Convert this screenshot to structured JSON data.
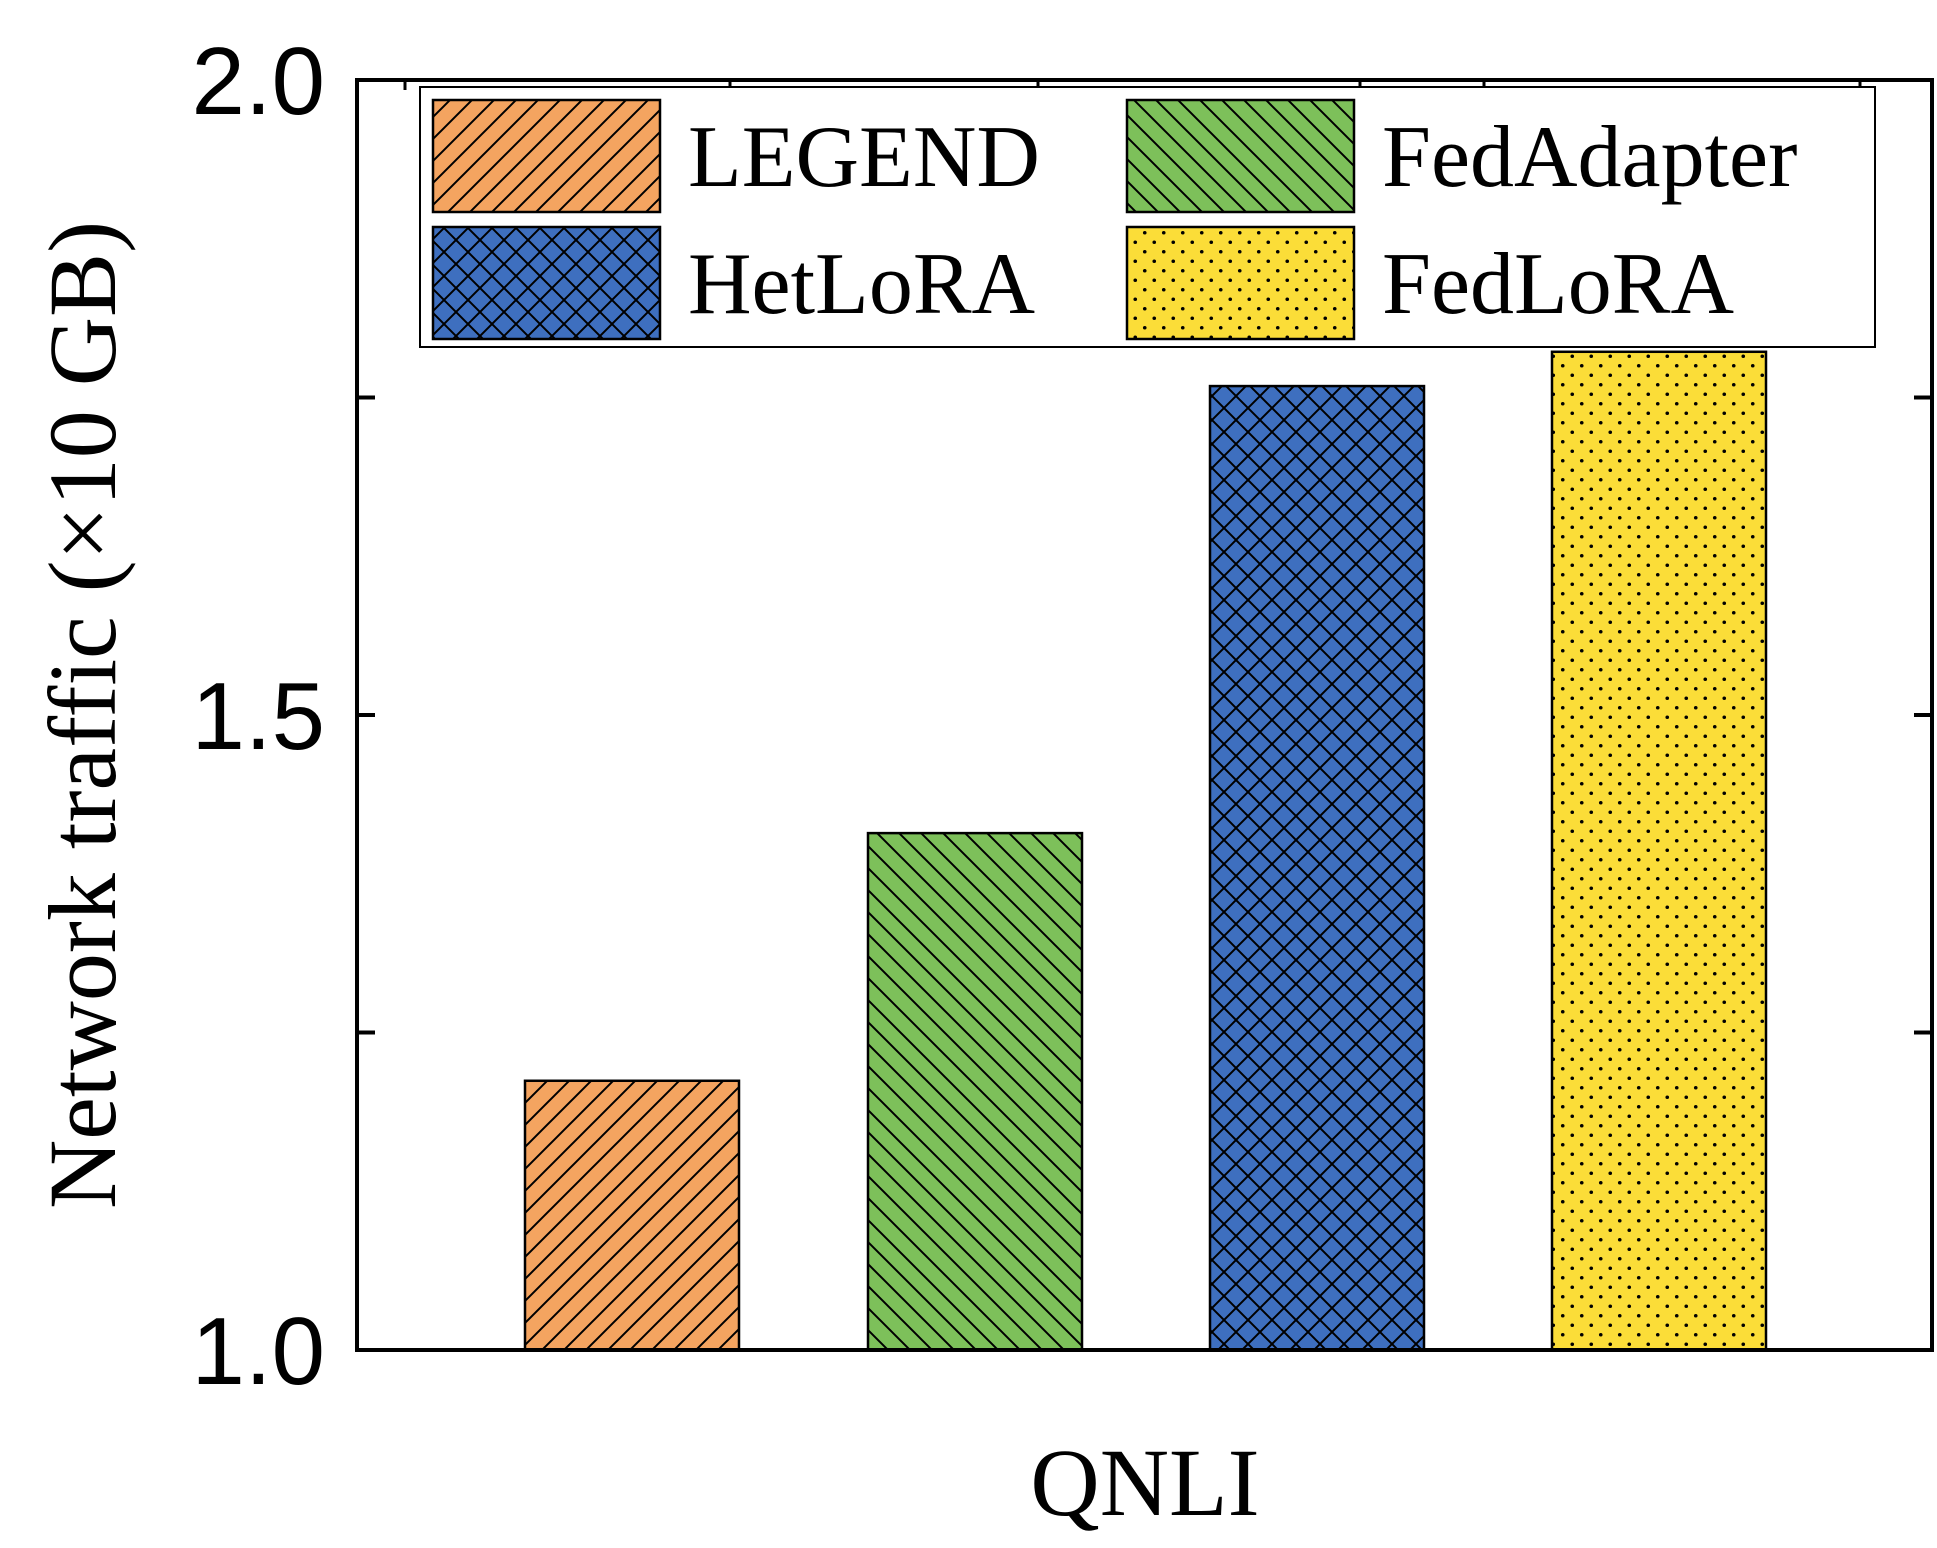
{
  "chart_data": {
    "type": "bar",
    "title": "",
    "xlabel": "QNLI",
    "ylabel": "Network traffic (×10 GB)",
    "ylim": [
      1.0,
      2.0
    ],
    "yticks": [
      {
        "value": 1.0,
        "label": "1.0"
      },
      {
        "value": 1.25,
        "label": ""
      },
      {
        "value": 1.5,
        "label": "1.5"
      },
      {
        "value": 1.75,
        "label": ""
      },
      {
        "value": 2.0,
        "label": "2.0"
      }
    ],
    "categories": [
      "QNLI"
    ],
    "series": [
      {
        "name": "LEGEND",
        "values": [
          1.212
        ],
        "color": "#F4A460",
        "pattern": "diagonal-forward"
      },
      {
        "name": "FedAdapter",
        "values": [
          1.407
        ],
        "color": "#7DC05A",
        "pattern": "diagonal-backward"
      },
      {
        "name": "HetLoRA",
        "values": [
          1.759
        ],
        "color": "#3E6FBF",
        "pattern": "crosshatch"
      },
      {
        "name": "FedLoRA",
        "values": [
          1.786
        ],
        "color": "#FBDD38",
        "pattern": "dots"
      }
    ],
    "legend": {
      "position": "top",
      "columns": 2
    },
    "grid": false
  }
}
